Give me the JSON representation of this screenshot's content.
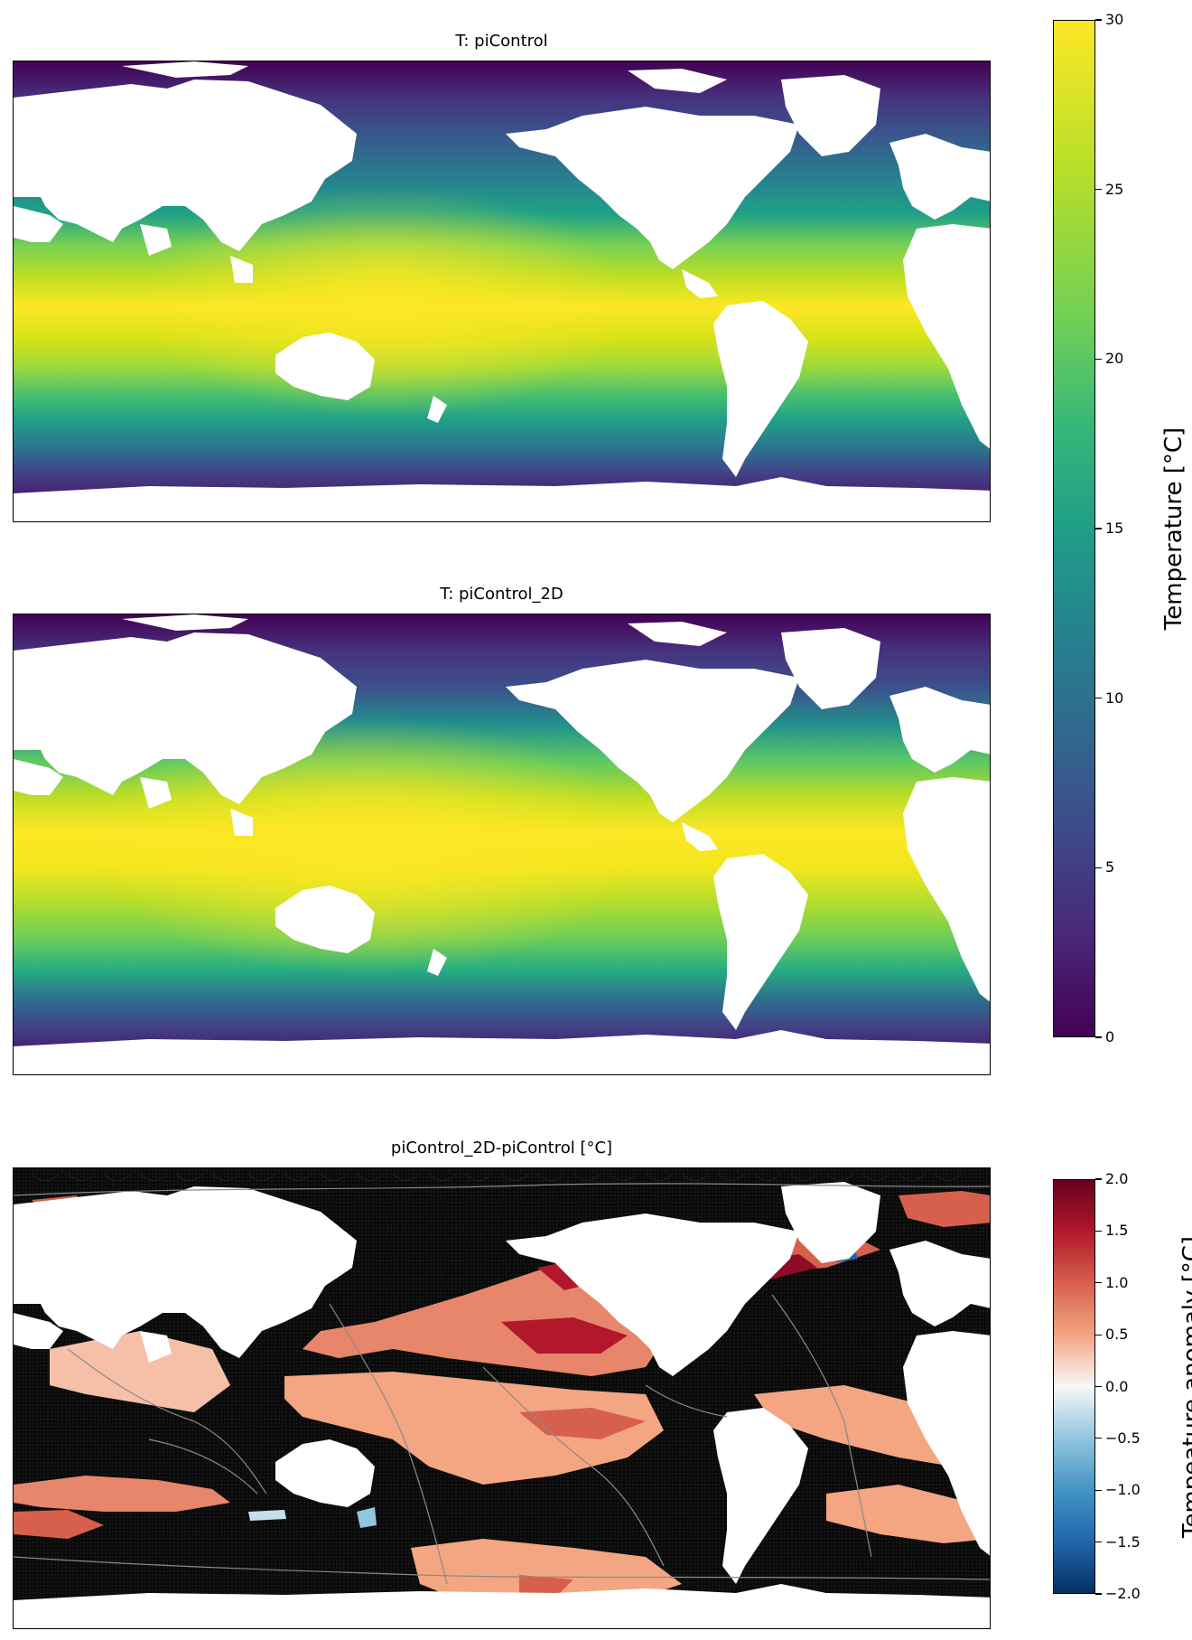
{
  "figure": {
    "panels": [
      {
        "id": "top",
        "title": "T: piControl"
      },
      {
        "id": "mid",
        "title": "T: piControl_2D"
      },
      {
        "id": "bottom",
        "title": "piControl_2D-piControl [°C]"
      }
    ]
  },
  "colorbars": {
    "temperature": {
      "label": "Temperature [°C]",
      "ticks": [
        "0",
        "5",
        "10",
        "15",
        "20",
        "25",
        "30"
      ],
      "colormap": "viridis",
      "colors": [
        "#440154",
        "#3b528b",
        "#21918c",
        "#5ec962",
        "#fde725"
      ]
    },
    "anomaly": {
      "label": "Tempeature anomaly [°C]",
      "ticks": [
        "−2.0",
        "−1.5",
        "−1.0",
        "−0.5",
        "0.0",
        "0.5",
        "1.0",
        "1.5",
        "2.0"
      ],
      "colormap": "RdBu_r",
      "colors": [
        "#053061",
        "#2166ac",
        "#4393c3",
        "#92c5de",
        "#f7f7f7",
        "#f4a582",
        "#d6604d",
        "#b2182b",
        "#67001f"
      ]
    }
  },
  "chart_data": [
    {
      "type": "heatmap",
      "title": "T: piControl",
      "xlabel": "",
      "ylabel": "",
      "colorbar_label": "Temperature [°C]",
      "vmin": 0,
      "vmax": 30,
      "colormap": "viridis",
      "land_color": "#ffffff",
      "features": "warm pool ~30 °C in western Pacific / Indian Ocean tropics, decreasing poleward to ~0 °C in Southern Ocean and Arctic"
    },
    {
      "type": "heatmap",
      "title": "T: piControl_2D",
      "xlabel": "",
      "ylabel": "",
      "colorbar_label": "Temperature [°C]",
      "vmin": 0,
      "vmax": 30,
      "colormap": "viridis",
      "land_color": "#ffffff",
      "features": "similar pattern to piControl with slightly warmer tropics"
    },
    {
      "type": "heatmap",
      "title": "piControl_2D-piControl [°C]",
      "xlabel": "",
      "ylabel": "",
      "colorbar_label": "Tempeature anomaly [°C]",
      "vmin": -2.0,
      "vmax": 2.0,
      "colormap": "RdBu_r",
      "land_color": "#ffffff",
      "overlays": [
        "black stippling over non-significant regions",
        "grey bathymetry contours"
      ],
      "features": "mostly positive anomalies up to ~2 °C in North Pacific and Gulf Stream region; small negative patches in Labrador Sea and near Antarctica"
    }
  ]
}
